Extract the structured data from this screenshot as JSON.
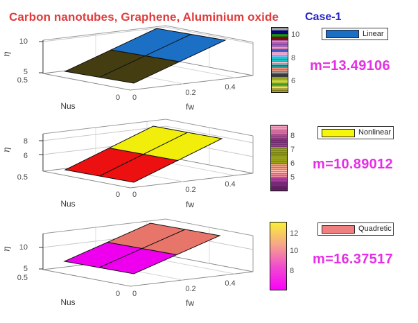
{
  "header": {
    "title": "Carbon nanotubes, Graphene, Aluminium oxide",
    "title_color": "#e03c3c",
    "case_label": "Case-1",
    "case_color": "#2424c8"
  },
  "chart_data": [
    {
      "type": "surface",
      "title": "",
      "xlabel": "fw",
      "ylabel": "Nus",
      "zlabel": "η",
      "x_range": [
        0,
        0.5
      ],
      "y_range": [
        0,
        0.5
      ],
      "x_ticks": [
        "0",
        "0.2",
        "0.4"
      ],
      "y_ticks": [
        "0.5",
        "0"
      ],
      "z_ticks": [
        "10",
        "5"
      ],
      "surface": {
        "grid": "2x2 plane rising along fw",
        "z_along_fw_estimate": [
          5.5,
          8,
          10.5
        ],
        "near_half_color": "#443d12",
        "far_half_color": "#1b6fc5"
      },
      "colorbar": {
        "style": "multicolor-stripes",
        "ticks": [
          "10",
          "8",
          "6"
        ],
        "stripes": [
          "#a9a9a9",
          "#00008b",
          "#0da00d",
          "#990000",
          "#e878de",
          "#9d5ad8",
          "#f895c5",
          "#3b62e0",
          "#f8b0d8",
          "#6cc0f0",
          "#16c8c8",
          "#f8c0cc",
          "#169a9a",
          "#f09078",
          "#9a9a9a",
          "#3c3c3c",
          "#a0b020",
          "#cede3a",
          "#46b424",
          "#e8e44c",
          "#b0a020"
        ]
      },
      "legend": {
        "label": "Linear",
        "swatch_color": "#1b6fc5"
      },
      "annotation": {
        "text": "m=13.49106",
        "m_value": 13.49106,
        "color": "#e62ee6"
      }
    },
    {
      "type": "surface",
      "title": "",
      "xlabel": "fw",
      "ylabel": "Nus",
      "zlabel": "η",
      "x_range": [
        0,
        0.5
      ],
      "y_range": [
        0,
        0.5
      ],
      "x_ticks": [
        "0",
        "0.2",
        "0.4"
      ],
      "y_ticks": [
        "0.5",
        "0"
      ],
      "z_ticks": [
        "8",
        "6"
      ],
      "surface": {
        "grid": "2x2 plane rising along fw",
        "z_along_fw_estimate": [
          4.6,
          6.5,
          8.4
        ],
        "near_half_color": "#ec1010",
        "far_half_color": "#f2ee0c"
      },
      "colorbar": {
        "style": "multicolor-stripes",
        "ticks": [
          "8",
          "7",
          "6",
          "5"
        ],
        "stripes": [
          "#f4a0c0",
          "#e070a8",
          "#b04898",
          "#8c2c8c",
          "#a03898",
          "#9aa318",
          "#8c9610",
          "#a0aa20",
          "#98a214",
          "#f0a088",
          "#f8b8b0",
          "#e88898",
          "#a84098",
          "#802880",
          "#6a1c6a"
        ]
      },
      "legend": {
        "label": "Nonlinear",
        "swatch_color": "#f6f60a"
      },
      "annotation": {
        "text": "m=10.89012",
        "m_value": 10.89012,
        "color": "#e62ee6"
      }
    },
    {
      "type": "surface",
      "title": "",
      "xlabel": "fw",
      "ylabel": "Nus",
      "zlabel": "η",
      "x_range": [
        0,
        0.5
      ],
      "y_range": [
        0,
        0.5
      ],
      "x_ticks": [
        "0",
        "0.2",
        "0.4"
      ],
      "y_ticks": [
        "0.5",
        "0"
      ],
      "z_ticks": [
        "10",
        "5"
      ],
      "surface": {
        "grid": "2x2 plane rising along fw",
        "z_along_fw_estimate": [
          6.5,
          9.8,
          13
        ],
        "near_half_color": "#ee00ee",
        "far_half_color": "#e8756a"
      },
      "colorbar": {
        "style": "smooth-gradient",
        "ticks": [
          "12",
          "10",
          "8"
        ],
        "gradient": [
          "#f9ef38",
          "#f6a58a",
          "#f04ad0",
          "#fb02fb"
        ]
      },
      "legend": {
        "label": "Quadretic",
        "swatch_color": "#f08080"
      },
      "annotation": {
        "text": "m=16.37517",
        "m_value": 16.37517,
        "color": "#e62ee6"
      }
    }
  ]
}
